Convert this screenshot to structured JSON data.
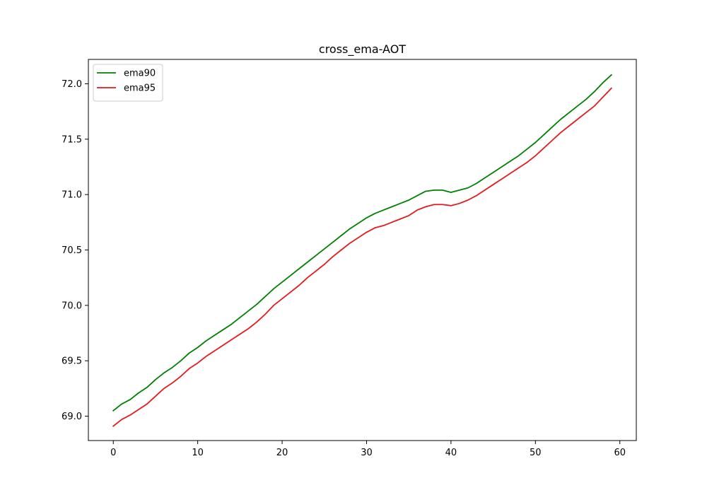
{
  "chart_data": {
    "type": "line",
    "title": "cross_ema-AOT",
    "xlabel": "",
    "ylabel": "",
    "xlim": [
      -2.95,
      61.95
    ],
    "ylim": [
      68.78,
      72.22
    ],
    "xticks": [
      0,
      10,
      20,
      30,
      40,
      50,
      60
    ],
    "yticks": [
      69.0,
      69.5,
      70.0,
      70.5,
      71.0,
      71.5,
      72.0
    ],
    "xtick_labels": [
      "0",
      "10",
      "20",
      "30",
      "40",
      "50",
      "60"
    ],
    "ytick_labels": [
      "69.0",
      "69.5",
      "70.0",
      "70.5",
      "71.0",
      "71.5",
      "72.0"
    ],
    "grid": false,
    "legend_position": "top-left",
    "x": [
      0,
      1,
      2,
      3,
      4,
      5,
      6,
      7,
      8,
      9,
      10,
      11,
      12,
      13,
      14,
      15,
      16,
      17,
      18,
      19,
      20,
      21,
      22,
      23,
      24,
      25,
      26,
      27,
      28,
      29,
      30,
      31,
      32,
      33,
      34,
      35,
      36,
      37,
      38,
      39,
      40,
      41,
      42,
      43,
      44,
      45,
      46,
      47,
      48,
      49,
      50,
      51,
      52,
      53,
      54,
      55,
      56,
      57,
      58,
      59
    ],
    "series": [
      {
        "name": "ema90",
        "color": "#008000",
        "values": [
          69.05,
          69.11,
          69.15,
          69.21,
          69.26,
          69.33,
          69.39,
          69.44,
          69.5,
          69.57,
          69.62,
          69.68,
          69.73,
          69.78,
          69.83,
          69.89,
          69.95,
          70.01,
          70.08,
          70.15,
          70.21,
          70.27,
          70.33,
          70.39,
          70.45,
          70.51,
          70.57,
          70.63,
          70.69,
          70.74,
          70.79,
          70.83,
          70.86,
          70.89,
          70.92,
          70.95,
          70.99,
          71.03,
          71.04,
          71.04,
          71.02,
          71.04,
          71.06,
          71.1,
          71.15,
          71.2,
          71.25,
          71.3,
          71.35,
          71.41,
          71.47,
          71.54,
          71.61,
          71.68,
          71.74,
          71.8,
          71.86,
          71.93,
          72.01,
          72.08
        ]
      },
      {
        "name": "ema95",
        "color": "#e41a1c",
        "values": [
          68.91,
          68.97,
          69.01,
          69.06,
          69.11,
          69.18,
          69.25,
          69.3,
          69.36,
          69.43,
          69.48,
          69.54,
          69.59,
          69.64,
          69.69,
          69.74,
          69.79,
          69.85,
          69.92,
          70.0,
          70.06,
          70.12,
          70.18,
          70.25,
          70.31,
          70.37,
          70.44,
          70.5,
          70.56,
          70.61,
          70.66,
          70.7,
          70.72,
          70.75,
          70.78,
          70.81,
          70.86,
          70.89,
          70.91,
          70.91,
          70.9,
          70.92,
          70.95,
          70.99,
          71.04,
          71.09,
          71.14,
          71.19,
          71.24,
          71.29,
          71.35,
          71.42,
          71.49,
          71.56,
          71.62,
          71.68,
          71.74,
          71.8,
          71.88,
          71.96
        ]
      }
    ]
  }
}
